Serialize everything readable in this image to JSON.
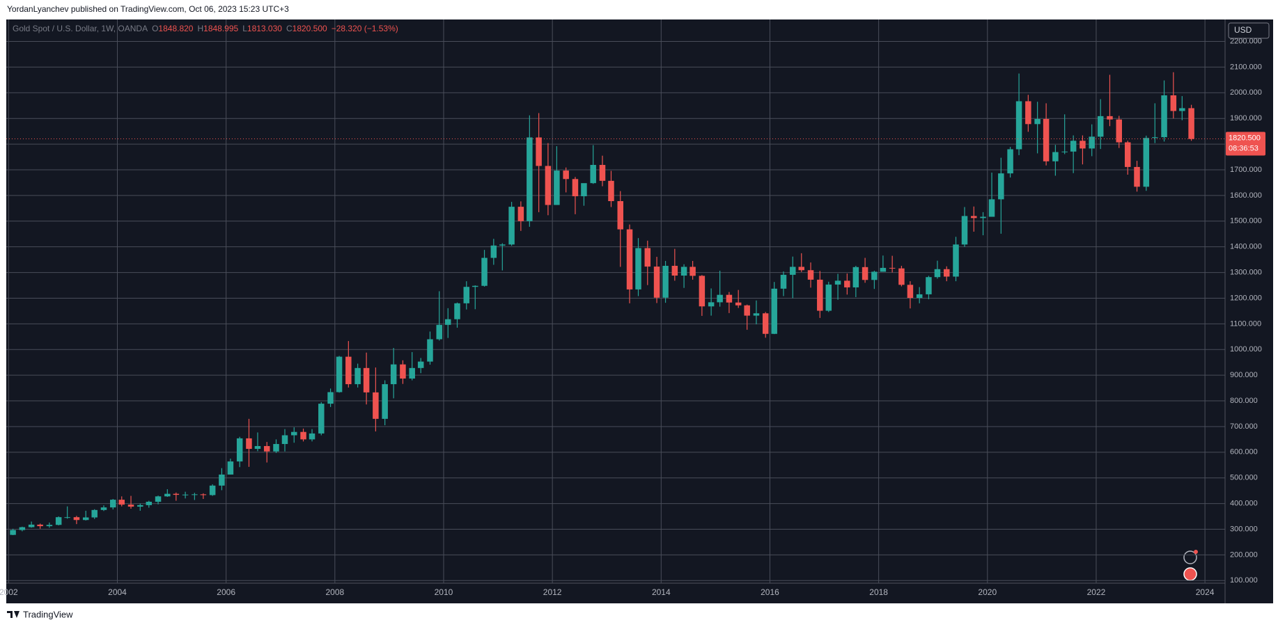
{
  "page": {
    "attribution": "YordanLyanchev published on TradingView.com, Oct 06, 2023 15:23 UTC+3",
    "footer_logo": "TradingView"
  },
  "chart_data": {
    "type": "candlestick",
    "symbol": "Gold Spot / U.S. Dollar, 1W, OANDA",
    "ohlc": [
      {
        "key": "O",
        "value": "1848.820"
      },
      {
        "key": "H",
        "value": "1848.995"
      },
      {
        "key": "L",
        "value": "1813.030"
      },
      {
        "key": "C",
        "value": "1820.500"
      }
    ],
    "change": "−28.320 (−1.53%)",
    "currency": "USD",
    "last_price": {
      "value": 1820.5,
      "label": "1820.500"
    },
    "countdown": "08:36:53",
    "up_color": "#26a69a",
    "down_color": "#ef5350",
    "grid": true,
    "xlim": [
      2001.97,
      2024.37
    ],
    "xticks": [
      2002,
      2004,
      2006,
      2008,
      2010,
      2012,
      2014,
      2016,
      2018,
      2020,
      2022,
      2024
    ],
    "ylim": [
      90,
      2280
    ],
    "yticks": [
      {
        "value": 100,
        "label": "100.000"
      },
      {
        "value": 200,
        "label": "200.000"
      },
      {
        "value": 300,
        "label": "300.000"
      },
      {
        "value": 400,
        "label": "400.000"
      },
      {
        "value": 500,
        "label": "500.000"
      },
      {
        "value": 600,
        "label": "600.000"
      },
      {
        "value": 700,
        "label": "700.000"
      },
      {
        "value": 800,
        "label": "800.000"
      },
      {
        "value": 900,
        "label": "900.000"
      },
      {
        "value": 1000,
        "label": "1000.000"
      },
      {
        "value": 1100,
        "label": "1100.000"
      },
      {
        "value": 1200,
        "label": "1200.000"
      },
      {
        "value": 1300,
        "label": "1300.000"
      },
      {
        "value": 1400,
        "label": "1400.000"
      },
      {
        "value": 1500,
        "label": "1500.000"
      },
      {
        "value": 1600,
        "label": "1600.000"
      },
      {
        "value": 1700,
        "label": "1700.000"
      },
      {
        "value": 1800,
        "label": "1800.000"
      },
      {
        "value": 1900,
        "label": "1900.000"
      },
      {
        "value": 2000,
        "label": "2000.000"
      },
      {
        "value": 2100,
        "label": "2100.000"
      },
      {
        "value": 2200,
        "label": "2200.000"
      }
    ],
    "x": [
      2002.08,
      2002.25,
      2002.42,
      2002.58,
      2002.75,
      2002.92,
      2003.08,
      2003.25,
      2003.42,
      2003.58,
      2003.75,
      2003.92,
      2004.08,
      2004.25,
      2004.42,
      2004.58,
      2004.75,
      2004.92,
      2005.08,
      2005.25,
      2005.42,
      2005.58,
      2005.75,
      2005.92,
      2006.08,
      2006.25,
      2006.42,
      2006.58,
      2006.75,
      2006.92,
      2007.08,
      2007.25,
      2007.42,
      2007.58,
      2007.75,
      2007.92,
      2008.08,
      2008.25,
      2008.42,
      2008.58,
      2008.75,
      2008.92,
      2009.08,
      2009.25,
      2009.42,
      2009.58,
      2009.75,
      2009.92,
      2010.08,
      2010.25,
      2010.42,
      2010.58,
      2010.75,
      2010.92,
      2011.08,
      2011.25,
      2011.42,
      2011.58,
      2011.75,
      2011.92,
      2012.08,
      2012.25,
      2012.42,
      2012.58,
      2012.75,
      2012.92,
      2013.08,
      2013.25,
      2013.42,
      2013.58,
      2013.75,
      2013.92,
      2014.08,
      2014.25,
      2014.42,
      2014.58,
      2014.75,
      2014.92,
      2015.08,
      2015.25,
      2015.42,
      2015.58,
      2015.75,
      2015.92,
      2016.08,
      2016.25,
      2016.42,
      2016.58,
      2016.75,
      2016.92,
      2017.08,
      2017.25,
      2017.42,
      2017.58,
      2017.75,
      2017.92,
      2018.08,
      2018.25,
      2018.42,
      2018.58,
      2018.75,
      2018.92,
      2019.08,
      2019.25,
      2019.42,
      2019.58,
      2019.75,
      2019.92,
      2020.08,
      2020.25,
      2020.42,
      2020.58,
      2020.75,
      2020.92,
      2021.08,
      2021.25,
      2021.42,
      2021.58,
      2021.75,
      2021.92,
      2022.08,
      2022.25,
      2022.42,
      2022.58,
      2022.75,
      2022.92,
      2023.08,
      2023.25,
      2023.42,
      2023.58,
      2023.75
    ],
    "open": [
      278,
      297,
      308,
      318,
      312,
      317,
      347,
      347,
      336,
      346,
      375,
      385,
      415,
      396,
      388,
      394,
      407,
      428,
      438,
      434,
      435,
      436,
      433,
      470,
      513,
      564,
      654,
      613,
      624,
      603,
      632,
      666,
      679,
      650,
      673,
      789,
      834,
      972,
      865,
      928,
      833,
      730,
      865,
      942,
      887,
      928,
      953,
      1040,
      1096,
      1118,
      1180,
      1244,
      1248,
      1357,
      1405,
      1409,
      1556,
      1500,
      1826,
      1715,
      1563,
      1697,
      1664,
      1597,
      1648,
      1719,
      1657,
      1578,
      1468,
      1234,
      1395,
      1323,
      1202,
      1326,
      1288,
      1322,
      1287,
      1168,
      1184,
      1213,
      1183,
      1172,
      1132,
      1141,
      1061,
      1237,
      1291,
      1322,
      1309,
      1272,
      1151,
      1253,
      1268,
      1242,
      1321,
      1271,
      1303,
      1318,
      1316,
      1252,
      1201,
      1215,
      1282,
      1313,
      1284,
      1409,
      1520,
      1512,
      1517,
      1585,
      1686,
      1780,
      1967,
      1878,
      1898,
      1733,
      1769,
      1771,
      1813,
      1783,
      1829,
      1909,
      1896,
      1807,
      1711,
      1634,
      1824,
      1827,
      1990,
      1929,
      1940
    ],
    "high": [
      302,
      310,
      330,
      322,
      326,
      350,
      389,
      352,
      372,
      378,
      393,
      418,
      428,
      430,
      400,
      411,
      431,
      456,
      443,
      446,
      442,
      440,
      475,
      538,
      575,
      660,
      730,
      677,
      640,
      650,
      690,
      697,
      692,
      690,
      795,
      848,
      975,
      1033,
      945,
      988,
      930,
      880,
      1006,
      958,
      990,
      967,
      1070,
      1227,
      1161,
      1183,
      1266,
      1250,
      1388,
      1431,
      1414,
      1575,
      1577,
      1912,
      1921,
      1804,
      1792,
      1709,
      1672,
      1640,
      1796,
      1755,
      1696,
      1617,
      1487,
      1434,
      1424,
      1361,
      1345,
      1392,
      1332,
      1345,
      1290,
      1238,
      1307,
      1224,
      1232,
      1175,
      1191,
      1146,
      1263,
      1304,
      1362,
      1375,
      1339,
      1306,
      1264,
      1295,
      1296,
      1326,
      1357,
      1307,
      1366,
      1365,
      1326,
      1266,
      1243,
      1287,
      1346,
      1324,
      1439,
      1555,
      1557,
      1535,
      1689,
      1747,
      1789,
      2075,
      1992,
      1965,
      1959,
      1797,
      1916,
      1834,
      1834,
      1877,
      1975,
      2070,
      1910,
      1813,
      1735,
      1833,
      1959,
      2048,
      2080,
      1987,
      1953
    ],
    "low": [
      277,
      292,
      306,
      302,
      306,
      315,
      341,
      320,
      334,
      340,
      371,
      377,
      389,
      380,
      372,
      384,
      397,
      426,
      411,
      420,
      414,
      418,
      430,
      452,
      513,
      542,
      543,
      604,
      560,
      597,
      603,
      637,
      642,
      642,
      666,
      776,
      832,
      852,
      852,
      786,
      681,
      705,
      810,
      866,
      880,
      908,
      941,
      1035,
      1045,
      1085,
      1156,
      1157,
      1245,
      1330,
      1308,
      1404,
      1462,
      1478,
      1535,
      1523,
      1563,
      1612,
      1527,
      1560,
      1645,
      1636,
      1555,
      1322,
      1180,
      1208,
      1251,
      1181,
      1182,
      1268,
      1240,
      1272,
      1131,
      1132,
      1167,
      1142,
      1162,
      1077,
      1098,
      1046,
      1060,
      1208,
      1200,
      1302,
      1241,
      1123,
      1146,
      1194,
      1214,
      1204,
      1260,
      1236,
      1303,
      1300,
      1246,
      1160,
      1180,
      1196,
      1276,
      1266,
      1266,
      1400,
      1459,
      1445,
      1517,
      1451,
      1670,
      1757,
      1848,
      1764,
      1717,
      1677,
      1761,
      1687,
      1721,
      1753,
      1781,
      1870,
      1785,
      1681,
      1615,
      1618,
      1804,
      1810,
      1900,
      1893,
      1813
    ],
    "close": [
      297,
      308,
      318,
      312,
      317,
      347,
      347,
      336,
      346,
      375,
      385,
      415,
      396,
      388,
      394,
      407,
      428,
      438,
      434,
      435,
      436,
      433,
      470,
      513,
      564,
      654,
      613,
      624,
      603,
      632,
      666,
      679,
      650,
      673,
      789,
      834,
      972,
      865,
      928,
      833,
      730,
      865,
      942,
      887,
      928,
      953,
      1040,
      1096,
      1118,
      1180,
      1244,
      1248,
      1357,
      1405,
      1409,
      1556,
      1500,
      1826,
      1715,
      1563,
      1697,
      1664,
      1597,
      1648,
      1719,
      1657,
      1578,
      1468,
      1234,
      1395,
      1323,
      1202,
      1326,
      1288,
      1322,
      1287,
      1168,
      1184,
      1213,
      1183,
      1172,
      1132,
      1141,
      1061,
      1237,
      1291,
      1322,
      1309,
      1272,
      1151,
      1253,
      1268,
      1242,
      1321,
      1271,
      1303,
      1318,
      1316,
      1252,
      1201,
      1215,
      1282,
      1313,
      1284,
      1409,
      1520,
      1512,
      1517,
      1585,
      1686,
      1780,
      1967,
      1878,
      1898,
      1733,
      1769,
      1771,
      1813,
      1783,
      1829,
      1909,
      1896,
      1807,
      1711,
      1634,
      1824,
      1827,
      1990,
      1929,
      1940,
      1820
    ]
  }
}
